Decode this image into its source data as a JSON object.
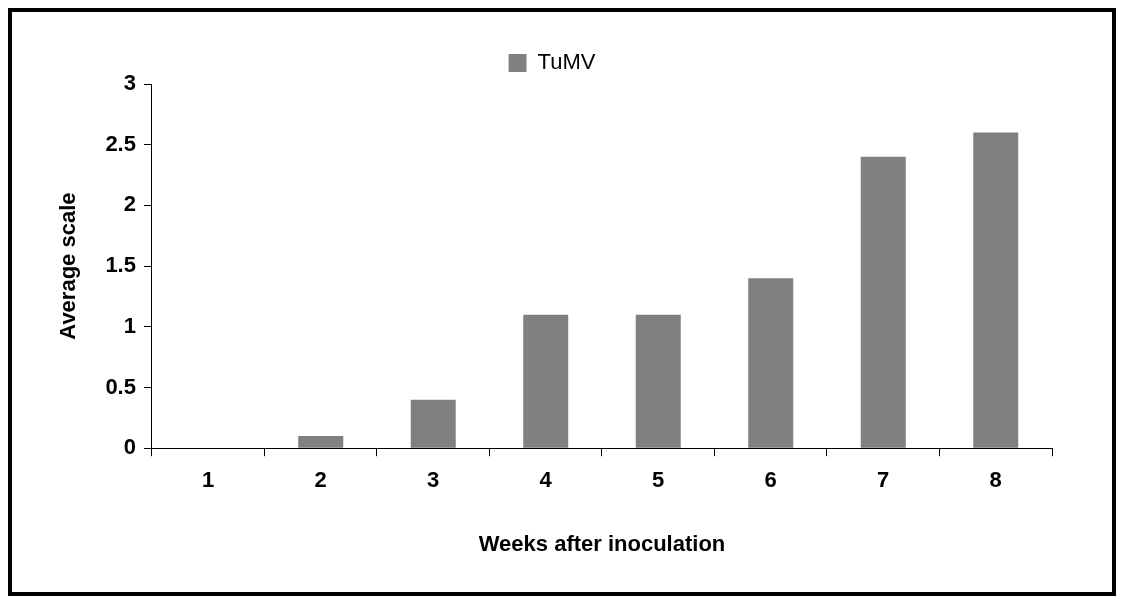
{
  "chart_data": {
    "type": "bar",
    "xlabel": "Weeks after inoculation",
    "ylabel": "Average scale",
    "categories": [
      "1",
      "2",
      "3",
      "4",
      "5",
      "6",
      "7",
      "8"
    ],
    "series": [
      {
        "name": "TuMV",
        "color": "#808080",
        "values": [
          0,
          0.1,
          0.4,
          1.1,
          1.1,
          1.4,
          2.4,
          2.6
        ]
      }
    ],
    "ylim": [
      0,
      3
    ],
    "yticks": [
      0,
      0.5,
      1,
      1.5,
      2,
      2.5,
      3
    ],
    "grid": false,
    "legend": "top"
  }
}
